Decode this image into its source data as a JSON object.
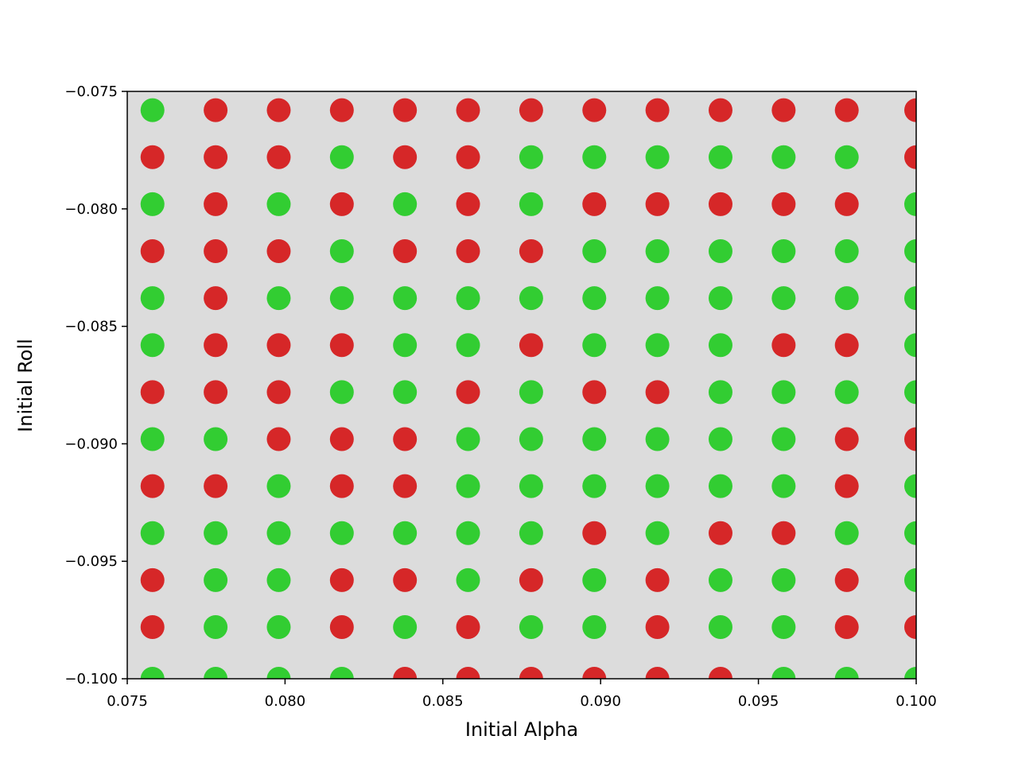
{
  "chart_data": {
    "type": "scatter",
    "title": "",
    "xlabel": "Initial Alpha",
    "ylabel": "Initial Roll",
    "xlim": [
      0.075,
      0.1
    ],
    "ylim": [
      -0.1,
      -0.075
    ],
    "x_ticks": [
      0.075,
      0.08,
      0.085,
      0.09,
      0.095,
      0.1
    ],
    "x_tick_labels": [
      "0.075",
      "0.080",
      "0.085",
      "0.090",
      "0.095",
      "0.100"
    ],
    "y_ticks": [
      -0.075,
      -0.08,
      -0.085,
      -0.09,
      -0.095,
      -0.1
    ],
    "y_tick_labels": [
      "−0.075",
      "−0.080",
      "−0.085",
      "−0.090",
      "−0.095",
      "−0.100"
    ],
    "grid": false,
    "background_color": "#dcdcdc",
    "colors": {
      "g": "#32cd32",
      "r": "#d62728"
    },
    "x": [
      0.0758,
      0.0778,
      0.0798,
      0.0818,
      0.0838,
      0.0858,
      0.0878,
      0.0898,
      0.0918,
      0.0938,
      0.0958,
      0.0978,
      0.1
    ],
    "y": [
      -0.0758,
      -0.0778,
      -0.0798,
      -0.0818,
      -0.0838,
      -0.0858,
      -0.0878,
      -0.0898,
      -0.0918,
      -0.0938,
      -0.0958,
      -0.0978,
      -0.1
    ],
    "outcomes": [
      [
        "g",
        "r",
        "r",
        "r",
        "r",
        "r",
        "r",
        "r",
        "r",
        "r",
        "r",
        "r",
        "r"
      ],
      [
        "r",
        "r",
        "r",
        "g",
        "r",
        "r",
        "g",
        "g",
        "g",
        "g",
        "g",
        "g",
        "r"
      ],
      [
        "g",
        "r",
        "g",
        "r",
        "g",
        "r",
        "g",
        "r",
        "r",
        "r",
        "r",
        "r",
        "g"
      ],
      [
        "r",
        "r",
        "r",
        "g",
        "r",
        "r",
        "r",
        "g",
        "g",
        "g",
        "g",
        "g",
        "g"
      ],
      [
        "g",
        "r",
        "g",
        "g",
        "g",
        "g",
        "g",
        "g",
        "g",
        "g",
        "g",
        "g",
        "g"
      ],
      [
        "g",
        "r",
        "r",
        "r",
        "g",
        "g",
        "r",
        "g",
        "g",
        "g",
        "r",
        "r",
        "g"
      ],
      [
        "r",
        "r",
        "r",
        "g",
        "g",
        "r",
        "g",
        "r",
        "r",
        "g",
        "g",
        "g",
        "g"
      ],
      [
        "g",
        "g",
        "r",
        "r",
        "r",
        "g",
        "g",
        "g",
        "g",
        "g",
        "g",
        "r",
        "r"
      ],
      [
        "r",
        "r",
        "g",
        "r",
        "r",
        "g",
        "g",
        "g",
        "g",
        "g",
        "g",
        "r",
        "g"
      ],
      [
        "g",
        "g",
        "g",
        "g",
        "g",
        "g",
        "g",
        "r",
        "g",
        "r",
        "r",
        "g",
        "g"
      ],
      [
        "r",
        "g",
        "g",
        "r",
        "r",
        "g",
        "r",
        "g",
        "r",
        "g",
        "g",
        "r",
        "g"
      ],
      [
        "r",
        "g",
        "g",
        "r",
        "g",
        "r",
        "g",
        "g",
        "r",
        "g",
        "g",
        "r",
        "r"
      ],
      [
        "g",
        "g",
        "g",
        "g",
        "r",
        "r",
        "r",
        "r",
        "r",
        "r",
        "g",
        "g",
        "g"
      ]
    ]
  }
}
